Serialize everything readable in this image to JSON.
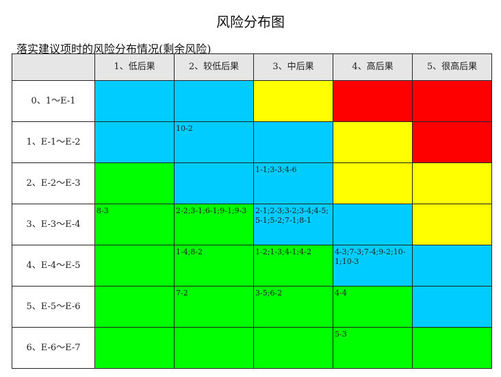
{
  "title": "风险分布图",
  "subtitle": "落实建议项时的风险分布情况(剩余风险)",
  "colors": {
    "B": "#00ccff",
    "Y": "#ffff00",
    "R": "#ff0000",
    "G": "#00ff00"
  },
  "columns": [
    "",
    "1、低后果",
    "2、较低后果",
    "3、中后果",
    "4、高后果",
    "5、很高后果"
  ],
  "rows": [
    {
      "label": "0、1～E-1",
      "colors": [
        "B",
        "B",
        "Y",
        "R",
        "R"
      ],
      "cells": [
        "",
        "",
        "",
        "",
        ""
      ]
    },
    {
      "label": "1、E-1～E-2",
      "colors": [
        "B",
        "B",
        "B",
        "Y",
        "R"
      ],
      "cells": [
        "",
        "10-2",
        "",
        "",
        ""
      ]
    },
    {
      "label": "2、E-2～E-3",
      "colors": [
        "G",
        "B",
        "B",
        "Y",
        "Y"
      ],
      "cells": [
        "",
        "",
        "1-1;3-3;4-6",
        "",
        ""
      ]
    },
    {
      "label": "3、E-3～E-4",
      "colors": [
        "G",
        "G",
        "B",
        "B",
        "Y"
      ],
      "cells": [
        "8-3",
        "2-2;3-1;6-1;9-1;9-3",
        "2-1;2-3;3-2;3-4;4-5;5-1;5-2;7-1;8-1",
        "",
        ""
      ]
    },
    {
      "label": "4、E-4～E-5",
      "colors": [
        "G",
        "G",
        "G",
        "B",
        "B"
      ],
      "cells": [
        "",
        "1-4;8-2",
        "1-2;1-3;4-1;4-2",
        "4-3;7-3;7-4;9-2;10-1;10-3",
        ""
      ]
    },
    {
      "label": "5、E-5～E-6",
      "colors": [
        "G",
        "G",
        "G",
        "G",
        "B"
      ],
      "cells": [
        "",
        "7-2",
        "3-5;6-2",
        "4-4",
        ""
      ]
    },
    {
      "label": "6、E-6～E-7",
      "colors": [
        "G",
        "G",
        "G",
        "G",
        "G"
      ],
      "cells": [
        "",
        "",
        "",
        "5-3",
        ""
      ]
    }
  ]
}
